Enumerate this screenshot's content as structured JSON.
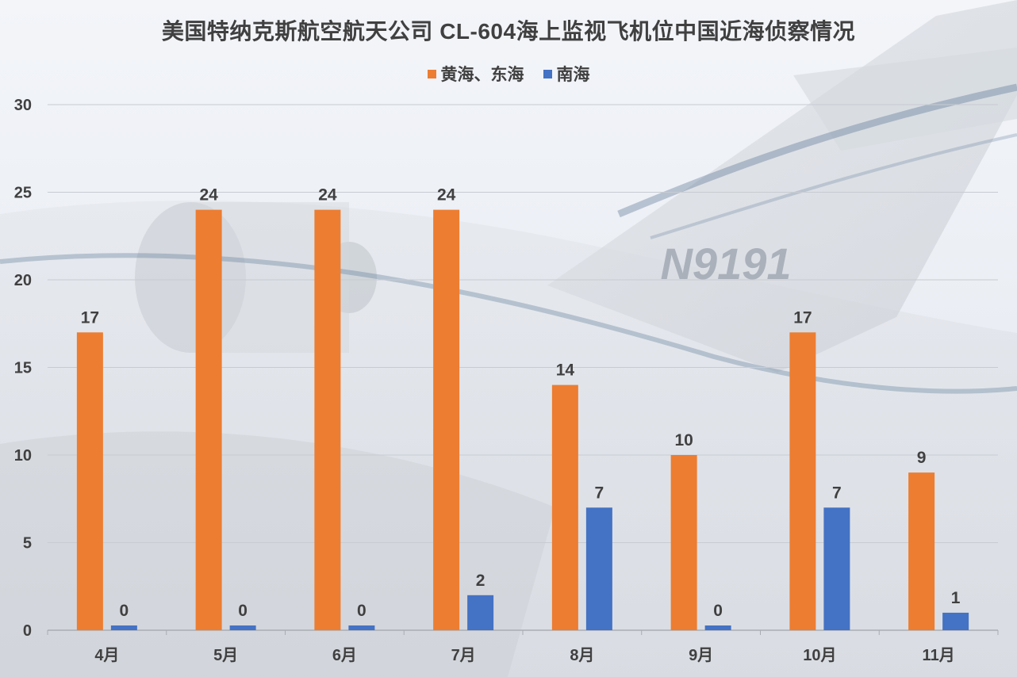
{
  "chart_data": {
    "type": "bar",
    "title": "美国特纳克斯航空航天公司 CL-604海上监视飞机位中国近海侦察情况",
    "categories": [
      "4月",
      "5月",
      "6月",
      "7月",
      "8月",
      "9月",
      "10月",
      "11月"
    ],
    "series": [
      {
        "name": "黄海、东海",
        "color": "#ed7d31",
        "values": [
          17,
          24,
          24,
          24,
          14,
          10,
          17,
          9
        ]
      },
      {
        "name": "南海",
        "color": "#4472c4",
        "values": [
          0,
          0,
          0,
          2,
          7,
          0,
          7,
          1
        ]
      }
    ],
    "ylim": [
      0,
      30
    ],
    "yticks": [
      0,
      5,
      10,
      15,
      20,
      25,
      30
    ],
    "grid": true,
    "legend_position": "top-center",
    "data_labels": true
  },
  "background": {
    "tail_registration": "N9191"
  }
}
